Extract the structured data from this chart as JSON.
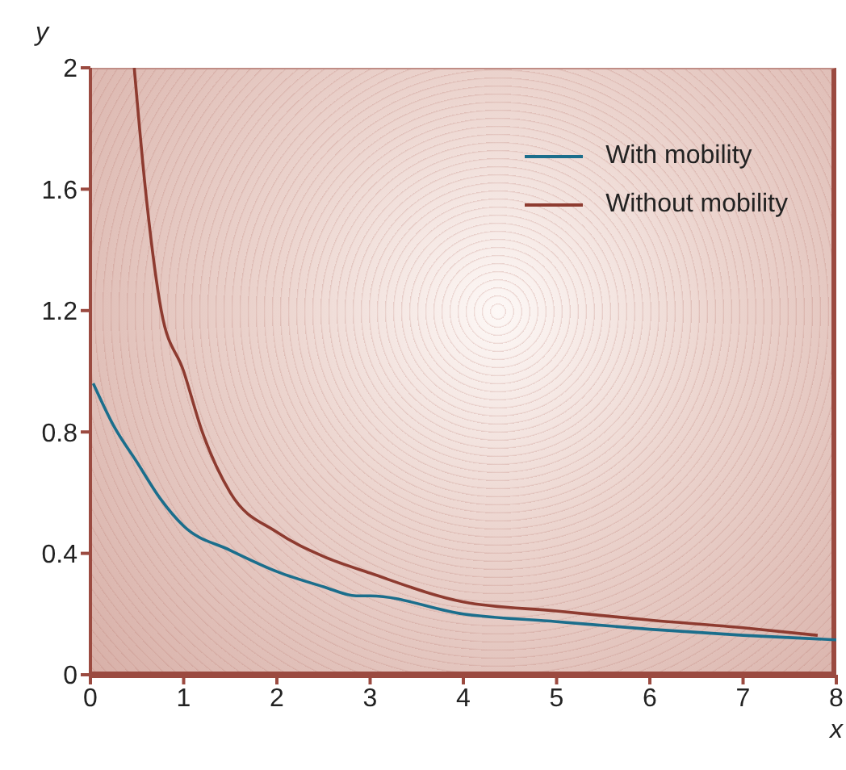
{
  "chart_data": {
    "type": "line",
    "xlabel": "x",
    "ylabel": "y",
    "xlim": [
      0,
      8
    ],
    "ylim": [
      0,
      2
    ],
    "xticks": [
      0,
      1,
      2,
      3,
      4,
      5,
      6,
      7,
      8
    ],
    "yticks": [
      0,
      0.4,
      0.8,
      1.2,
      1.6,
      2
    ],
    "grid": false,
    "legend": "top right",
    "marker": "none",
    "line_style": "solid",
    "series": [
      {
        "name": "With mobility",
        "color": "#1b6e8c",
        "x": [
          0.03,
          0.25,
          0.5,
          0.75,
          1,
          1.5,
          2,
          2.5,
          2.85,
          3,
          4,
          5,
          6,
          7,
          8
        ],
        "values": [
          0.96,
          0.82,
          0.7,
          0.58,
          0.49,
          0.41,
          0.34,
          0.29,
          0.26,
          0.26,
          0.2,
          0.175,
          0.15,
          0.13,
          0.115
        ]
      },
      {
        "name": "Without mobility",
        "color": "#8e3b30",
        "x": [
          0.47,
          0.59,
          0.76,
          1,
          1.2,
          1.5,
          2,
          2.5,
          3,
          4,
          5,
          6,
          7,
          7.8
        ],
        "values": [
          2,
          1.6,
          1.2,
          1.0,
          0.8,
          0.6,
          0.47,
          0.39,
          0.335,
          0.24,
          0.21,
          0.18,
          0.155,
          0.13
        ]
      }
    ]
  }
}
